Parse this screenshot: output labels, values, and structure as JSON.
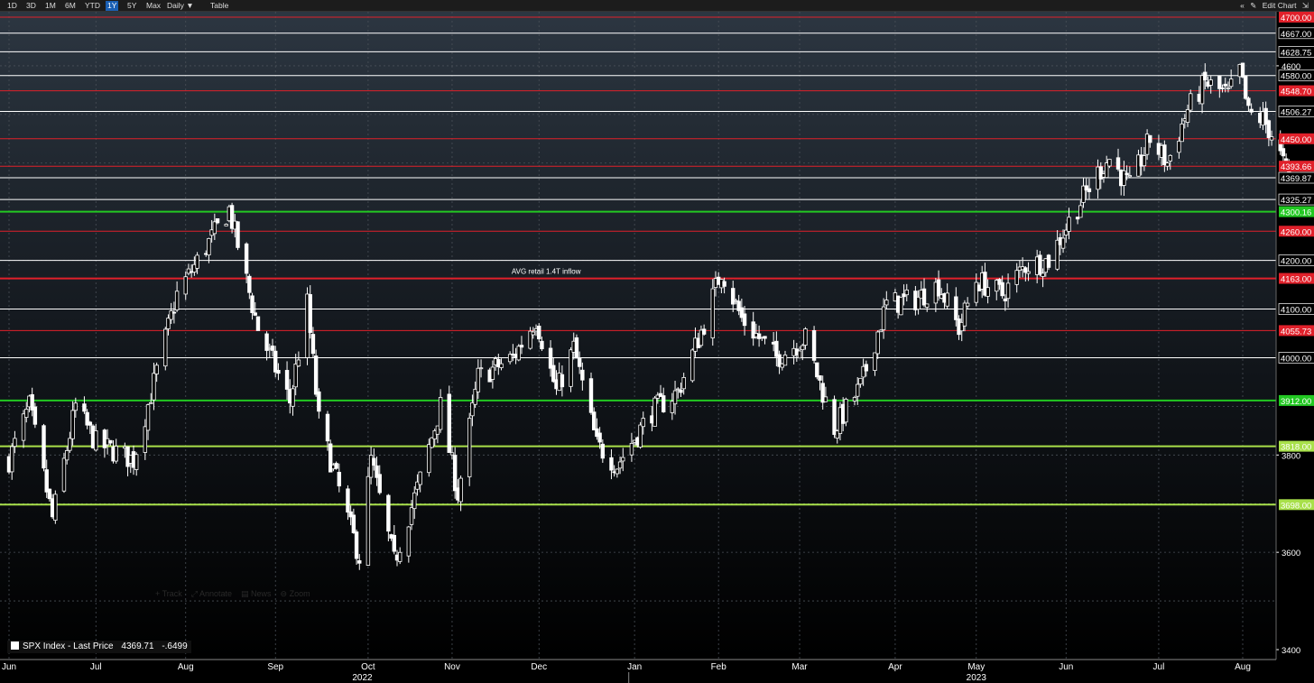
{
  "toolbar": {
    "ranges": [
      "1D",
      "3D",
      "1M",
      "6M",
      "YTD",
      "1Y",
      "5Y",
      "Max"
    ],
    "active_range": "1Y",
    "frequency": "Daily ▼",
    "table": "Table",
    "collapse_icon": "double-chevron-left-icon",
    "edit_chart": "Edit Chart",
    "pencil_icon": "pencil-icon",
    "extra_icon": "chart-settings-icon"
  },
  "ghost_toolbar": [
    "+ Track",
    "⤢ Annotate",
    "▤ News",
    "⊖ Zoom"
  ],
  "legend": {
    "label": "SPX Index - Last Price",
    "last_price": "4369.71",
    "change": "-.6499"
  },
  "chart_data": {
    "type": "candlestick",
    "title": "",
    "series_name": "SPX Index - Last Price",
    "ylim": [
      3400,
      4720
    ],
    "y_ticks": [
      3400,
      3600,
      3800,
      4600
    ],
    "x_months": [
      {
        "label": "Jun",
        "date": "2022-06-01"
      },
      {
        "label": "Jul",
        "date": "2022-07-01"
      },
      {
        "label": "Aug",
        "date": "2022-08-01"
      },
      {
        "label": "Sep",
        "date": "2022-09-01"
      },
      {
        "label": "Oct",
        "date": "2022-10-03"
      },
      {
        "label": "Nov",
        "date": "2022-11-01"
      },
      {
        "label": "Dec",
        "date": "2022-12-01"
      },
      {
        "label": "Jan",
        "date": "2023-01-03"
      },
      {
        "label": "Feb",
        "date": "2023-02-01"
      },
      {
        "label": "Mar",
        "date": "2023-03-01"
      },
      {
        "label": "Apr",
        "date": "2023-04-03"
      },
      {
        "label": "May",
        "date": "2023-05-01"
      },
      {
        "label": "Jun",
        "date": "2023-06-01"
      },
      {
        "label": "Jul",
        "date": "2023-07-03"
      },
      {
        "label": "Aug",
        "date": "2023-08-01"
      }
    ],
    "x_years": [
      {
        "label": "2022",
        "date": "2022-10-01"
      },
      {
        "label": "2023",
        "date": "2023-05-01"
      }
    ],
    "levels": [
      {
        "value": 4700.0,
        "label": "4700.00",
        "color": "#e0202a"
      },
      {
        "value": 4667.0,
        "label": "4667.00",
        "color": "#ffffff"
      },
      {
        "value": 4628.75,
        "label": "4628.75",
        "color": "#ffffff"
      },
      {
        "value": 4580.0,
        "label": "4580.00",
        "color": "#ffffff"
      },
      {
        "value": 4548.7,
        "label": "4548.70",
        "color": "#e0202a"
      },
      {
        "value": 4506.27,
        "label": "4506.27",
        "color": "#ffffff"
      },
      {
        "value": 4450.0,
        "label": "4450.00",
        "color": "#e0202a"
      },
      {
        "value": 4393.66,
        "label": "4393.66",
        "color": "#e0202a"
      },
      {
        "value": 4369.87,
        "label": "4369.87",
        "color": "#ffffff"
      },
      {
        "value": 4325.27,
        "label": "4325.27",
        "color": "#ffffff"
      },
      {
        "value": 4300.16,
        "label": "4300.16",
        "color": "#22c822"
      },
      {
        "value": 4260.0,
        "label": "4260.00",
        "color": "#e0202a"
      },
      {
        "value": 4200.0,
        "label": "4200.00",
        "color": "#ffffff"
      },
      {
        "value": 4163.0,
        "label": "4163.00",
        "color": "#e0202a"
      },
      {
        "value": 4100.0,
        "label": "4100.00",
        "color": "#ffffff"
      },
      {
        "value": 4055.73,
        "label": "4055.73",
        "color": "#e0202a"
      },
      {
        "value": 4000.0,
        "label": "4000.00",
        "color": "#ffffff"
      },
      {
        "value": 3912.0,
        "label": "3912.00",
        "color": "#22c822"
      },
      {
        "value": 3818.0,
        "label": "3818.00",
        "color": "#a8e04a"
      },
      {
        "value": 3698.0,
        "label": "3698.00",
        "color": "#a8e04a"
      }
    ],
    "annotation": {
      "text": "AVG retail 1.4T inflow",
      "date": "2022-12-01",
      "value": 4163
    },
    "price_path": [
      {
        "date": "2022-06-01",
        "close": 3790
      },
      {
        "date": "2022-06-08",
        "close": 3900
      },
      {
        "date": "2022-06-16",
        "close": 3670
      },
      {
        "date": "2022-06-24",
        "close": 3900
      },
      {
        "date": "2022-07-01",
        "close": 3825
      },
      {
        "date": "2022-07-14",
        "close": 3790
      },
      {
        "date": "2022-07-29",
        "close": 4130
      },
      {
        "date": "2022-08-16",
        "close": 4305
      },
      {
        "date": "2022-08-26",
        "close": 4060
      },
      {
        "date": "2022-09-06",
        "close": 3910
      },
      {
        "date": "2022-09-12",
        "close": 4110
      },
      {
        "date": "2022-09-16",
        "close": 3870
      },
      {
        "date": "2022-09-30",
        "close": 3590
      },
      {
        "date": "2022-10-04",
        "close": 3790
      },
      {
        "date": "2022-10-12",
        "close": 3580
      },
      {
        "date": "2022-10-21",
        "close": 3750
      },
      {
        "date": "2022-10-28",
        "close": 3900
      },
      {
        "date": "2022-11-03",
        "close": 3720
      },
      {
        "date": "2022-11-10",
        "close": 3960
      },
      {
        "date": "2022-11-22",
        "close": 4000
      },
      {
        "date": "2022-11-30",
        "close": 4080
      },
      {
        "date": "2022-12-07",
        "close": 3930
      },
      {
        "date": "2022-12-13",
        "close": 4020
      },
      {
        "date": "2022-12-21",
        "close": 3820
      },
      {
        "date": "2022-12-28",
        "close": 3780
      },
      {
        "date": "2023-01-09",
        "close": 3890
      },
      {
        "date": "2023-01-18",
        "close": 3930
      },
      {
        "date": "2023-01-27",
        "close": 4070
      },
      {
        "date": "2023-02-02",
        "close": 4180
      },
      {
        "date": "2023-02-09",
        "close": 4080
      },
      {
        "date": "2023-02-21",
        "close": 4000
      },
      {
        "date": "2023-03-03",
        "close": 4040
      },
      {
        "date": "2023-03-13",
        "close": 3855
      },
      {
        "date": "2023-03-22",
        "close": 3940
      },
      {
        "date": "2023-03-31",
        "close": 4110
      },
      {
        "date": "2023-04-10",
        "close": 4120
      },
      {
        "date": "2023-04-18",
        "close": 4150
      },
      {
        "date": "2023-04-25",
        "close": 4060
      },
      {
        "date": "2023-05-01",
        "close": 4160
      },
      {
        "date": "2023-05-10",
        "close": 4130
      },
      {
        "date": "2023-05-18",
        "close": 4190
      },
      {
        "date": "2023-05-26",
        "close": 4200
      },
      {
        "date": "2023-06-02",
        "close": 4280
      },
      {
        "date": "2023-06-12",
        "close": 4380
      },
      {
        "date": "2023-06-16",
        "close": 4410
      },
      {
        "date": "2023-06-23",
        "close": 4350
      },
      {
        "date": "2023-06-30",
        "close": 4450
      },
      {
        "date": "2023-07-06",
        "close": 4400
      },
      {
        "date": "2023-07-13",
        "close": 4510
      },
      {
        "date": "2023-07-19",
        "close": 4565
      },
      {
        "date": "2023-07-27",
        "close": 4540
      },
      {
        "date": "2023-07-31",
        "close": 4590
      },
      {
        "date": "2023-08-03",
        "close": 4500
      },
      {
        "date": "2023-08-08",
        "close": 4490
      },
      {
        "date": "2023-08-11",
        "close": 4460
      },
      {
        "date": "2023-08-17",
        "close": 4370
      }
    ]
  }
}
